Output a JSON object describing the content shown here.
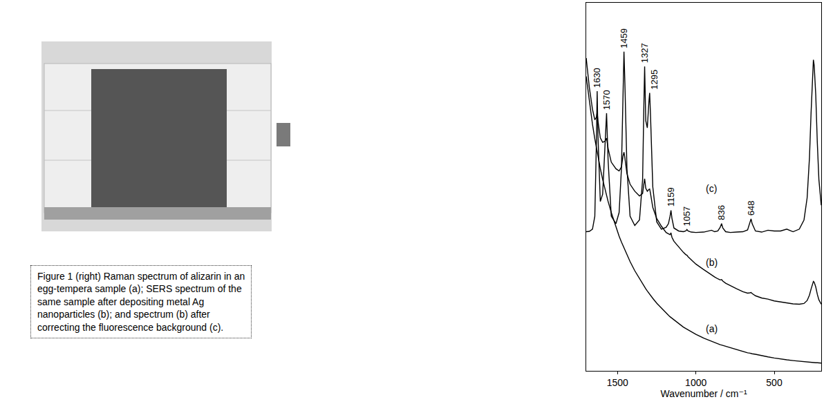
{
  "caption": {
    "lines": [
      "Figure 1 (right) Raman spectrum of alizarin in an",
      "egg-tempera sample (a); SERS spectrum of the",
      "same sample after depositing metal Ag",
      "nanoparticles (b); and spectrum (b) after",
      "correcting the fluorescence background (c)."
    ]
  },
  "chart_data": {
    "type": "line",
    "x_label": "Wavenumber / cm⁻¹",
    "color": "#000000",
    "grid": false,
    "tick_labels": "x",
    "xlim": [
      1700,
      200
    ],
    "xticks": [
      1500,
      1000,
      500
    ],
    "ylim": [
      0,
      100
    ],
    "yticks": [],
    "x": [
      1700,
      1680,
      1660,
      1645,
      1635,
      1630,
      1625,
      1610,
      1595,
      1580,
      1570,
      1560,
      1540,
      1510,
      1490,
      1475,
      1465,
      1459,
      1453,
      1440,
      1420,
      1390,
      1360,
      1340,
      1332,
      1327,
      1320,
      1310,
      1300,
      1295,
      1290,
      1275,
      1250,
      1220,
      1190,
      1175,
      1165,
      1159,
      1153,
      1140,
      1110,
      1080,
      1065,
      1057,
      1050,
      1030,
      1000,
      950,
      900,
      880,
      860,
      845,
      836,
      828,
      810,
      780,
      740,
      700,
      670,
      655,
      648,
      641,
      620,
      580,
      540,
      500,
      460,
      420,
      380,
      340,
      310,
      290,
      275,
      265,
      255,
      250,
      245,
      235,
      225,
      215,
      200
    ],
    "series": [
      {
        "name": "(a)",
        "values": [
          80,
          73,
          67,
          63,
          60.5,
          59.3,
          58.2,
          55,
          52,
          49.3,
          47.6,
          46,
          43,
          39,
          36.6,
          35,
          34,
          33.4,
          32.8,
          31.5,
          29.7,
          27.2,
          25,
          23.6,
          23.1,
          22.8,
          22.3,
          21.7,
          21.1,
          20.8,
          20.5,
          19.7,
          18.4,
          17,
          15.7,
          15.1,
          14.7,
          14.5,
          14.3,
          13.8,
          12.8,
          11.9,
          11.5,
          11.3,
          11.1,
          10.6,
          9.9,
          8.9,
          8,
          7.7,
          7.4,
          7.1,
          7,
          6.9,
          6.6,
          6.2,
          5.7,
          5.2,
          4.9,
          4.8,
          4.7,
          4.65,
          4.5,
          4.1,
          3.8,
          3.5,
          3.2,
          3,
          2.8,
          2.6,
          2.5,
          2.4,
          2.35,
          2.3,
          2.3,
          2.25,
          2.25,
          2.2,
          2.2,
          2.15,
          2.1
        ]
      },
      {
        "name": "(b)",
        "values": [
          85,
          77,
          71.1,
          68.2,
          68.9,
          70.3,
          67.9,
          63.3,
          62.1,
          62.4,
          63.2,
          60.4,
          56.7,
          54.9,
          54.3,
          55.4,
          58.4,
          59.4,
          57.8,
          53.6,
          50.7,
          48.8,
          47.5,
          48.2,
          50.8,
          52.2,
          49.6,
          48.8,
          49.3,
          49.4,
          48.3,
          44.4,
          41.4,
          39.3,
          37.6,
          37.2,
          37,
          37.5,
          36.3,
          35.2,
          33.6,
          32.2,
          31.6,
          31.4,
          31,
          30.2,
          29,
          27.5,
          26,
          25.5,
          25,
          24.7,
          24.8,
          24.4,
          23.8,
          23.1,
          22.3,
          21.5,
          21.1,
          21.2,
          21.3,
          21,
          20.4,
          19.8,
          19.5,
          19,
          18.7,
          18.5,
          18.2,
          18.1,
          18.3,
          19.1,
          20.6,
          22.2,
          23.7,
          24.3,
          24.1,
          22.8,
          20.8,
          19.3,
          18.1
        ]
      },
      {
        "name": "(c)",
        "values": [
          37.8,
          37.9,
          38.5,
          42,
          62,
          76,
          64,
          46,
          48,
          60,
          70,
          57,
          42,
          40,
          43,
          55,
          78,
          86.7,
          78,
          55,
          42,
          39.5,
          41,
          52,
          72,
          82.7,
          68,
          66,
          73,
          75.5,
          70,
          50,
          40.5,
          38.5,
          39,
          40,
          42,
          43.6,
          41.5,
          38.8,
          38,
          37.8,
          38,
          38.4,
          38,
          37.7,
          37.6,
          37.7,
          38.2,
          37.8,
          38,
          39,
          40,
          38.8,
          37.8,
          37.6,
          37.7,
          37.8,
          38.3,
          40.2,
          41.3,
          40,
          38,
          37.7,
          38.2,
          38,
          38,
          38.5,
          37.8,
          38.5,
          41,
          47,
          58,
          70,
          80,
          84.5,
          83,
          75,
          62,
          52,
          45
        ],
        "peak_labels": [
          1630,
          1570,
          1459,
          1327,
          1295,
          1159,
          1057,
          836,
          648
        ]
      }
    ]
  }
}
